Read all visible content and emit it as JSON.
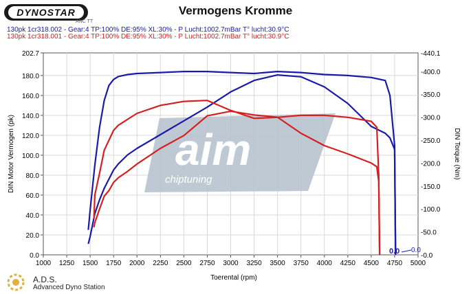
{
  "header": {
    "logo_text": "DYNOSTAR",
    "logo_sub": "ANC TT",
    "title": "Vermogens Kromme"
  },
  "runs": [
    {
      "label": "130pk 1cr318.002 - Gear:4 TP:100% DE:95% XL:30%   - P Lucht:1002.7mBar T° lucht:30.9°C",
      "color": "#1a1aa8"
    },
    {
      "label": "130pk 1cr318.001 - Gear:4 TP:100% DE:95% XL:30%   - P Lucht:1002.7mBar T° lucht:30.9°C",
      "color": "#d42020"
    }
  ],
  "footer": {
    "title": "A.D.S.",
    "subtitle": "Advanced Dyno Station"
  },
  "watermark": {
    "text": "aim",
    "subtext": "chiptuning",
    "color": "#b8c3cf"
  },
  "chart_data": {
    "type": "line",
    "xlabel": "Toerental (rpm)",
    "ylabel": "DIN Motor Vermogen (pk)",
    "y2label": "DIN Torque (Nm)",
    "xlim": [
      1000,
      5000
    ],
    "ylim": [
      0,
      202.7
    ],
    "y2lim": [
      0,
      440.1
    ],
    "x_ticks": [
      "1000",
      "1250",
      "1500",
      "1750",
      "2000",
      "2250",
      "2500",
      "2750",
      "3000",
      "3250",
      "3500",
      "3750",
      "4000",
      "4250",
      "4500",
      "4750",
      "5000"
    ],
    "y_ticks": [
      {
        "v": 0,
        "label": "0.0"
      },
      {
        "v": 20,
        "label": "20.0"
      },
      {
        "v": 40,
        "label": "40.0"
      },
      {
        "v": 60,
        "label": "60.0"
      },
      {
        "v": 80,
        "label": "80.0"
      },
      {
        "v": 100,
        "label": "100.0"
      },
      {
        "v": 120,
        "label": "120.0"
      },
      {
        "v": 140,
        "label": "140.0"
      },
      {
        "v": 160,
        "label": "160.0"
      },
      {
        "v": 180,
        "label": "180.0"
      },
      {
        "v": 202.7,
        "label": "202.7"
      }
    ],
    "y2_ticks": [
      {
        "v": 0,
        "label": "-0.0"
      },
      {
        "v": 50,
        "label": "-50.0"
      },
      {
        "v": 100,
        "label": "-100.0"
      },
      {
        "v": 150,
        "label": "-150.0"
      },
      {
        "v": 200,
        "label": "-200.0"
      },
      {
        "v": 250,
        "label": "-250.0"
      },
      {
        "v": 300,
        "label": "-300.0"
      },
      {
        "v": 350,
        "label": "-350.0"
      },
      {
        "v": 400,
        "label": "-400.0"
      },
      {
        "v": 440.1,
        "label": "-440.1"
      }
    ],
    "grid": true,
    "annotations": [
      "0.0",
      "0.0"
    ],
    "series": [
      {
        "color": "#1a1aa8",
        "axis": "left",
        "x": [
          1480,
          1500,
          1550,
          1600,
          1650,
          1700,
          1750,
          1800,
          1900,
          2000,
          2250,
          2500,
          2750,
          3000,
          3250,
          3500,
          3750,
          4000,
          4250,
          4500,
          4650,
          4700,
          4750,
          4760
        ],
        "y": [
          25,
          45,
          90,
          128,
          155,
          170,
          176,
          179,
          181,
          182,
          183,
          184,
          184,
          183,
          182,
          184,
          183,
          181,
          180,
          178,
          175,
          160,
          110,
          0
        ]
      },
      {
        "color": "#1a1aa8",
        "axis": "right",
        "x": [
          1480,
          1500,
          1550,
          1600,
          1650,
          1700,
          1750,
          1800,
          1900,
          2000,
          2250,
          2500,
          2750,
          3000,
          3250,
          3500,
          3750,
          4000,
          4250,
          4500,
          4650,
          4700,
          4750,
          4760
        ],
        "y": [
          24,
          40,
          90,
          120,
          145,
          165,
          185,
          198,
          218,
          232,
          262,
          292,
          322,
          355,
          380,
          392,
          388,
          366,
          330,
          280,
          265,
          255,
          230,
          0
        ]
      },
      {
        "color": "#d42020",
        "axis": "left",
        "x": [
          1540,
          1550,
          1600,
          1650,
          1700,
          1750,
          1800,
          1900,
          2000,
          2250,
          2500,
          2750,
          3000,
          3250,
          3500,
          3750,
          4000,
          4250,
          4500,
          4560,
          4580,
          4590
        ],
        "y": [
          36,
          60,
          82,
          105,
          115,
          125,
          130,
          136,
          142,
          150,
          154,
          155,
          145,
          137,
          138,
          140,
          140,
          138,
          134,
          128,
          80,
          0
        ]
      },
      {
        "color": "#d42020",
        "axis": "right",
        "x": [
          1540,
          1550,
          1600,
          1650,
          1700,
          1750,
          1800,
          1900,
          2000,
          2250,
          2500,
          2750,
          3000,
          3250,
          3500,
          3750,
          4000,
          4250,
          4500,
          4560,
          4580,
          4590
        ],
        "y": [
          60,
          70,
          100,
          128,
          140,
          158,
          168,
          182,
          198,
          232,
          260,
          303,
          313,
          305,
          300,
          265,
          238,
          220,
          200,
          192,
          160,
          0
        ]
      }
    ]
  }
}
